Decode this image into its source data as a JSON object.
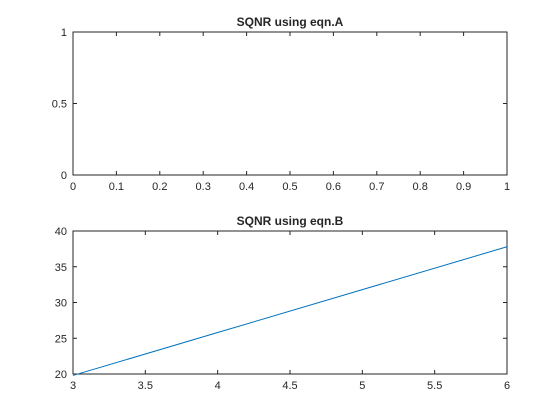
{
  "chart_data": [
    {
      "type": "line",
      "title": "SQNR using eqn.A",
      "xlim": [
        0,
        1
      ],
      "ylim": [
        0,
        1
      ],
      "xticks": [
        "0",
        "0.1",
        "0.2",
        "0.3",
        "0.4",
        "0.5",
        "0.6",
        "0.7",
        "0.8",
        "0.9",
        "1"
      ],
      "yticks": [
        "0",
        "0.5",
        "1"
      ],
      "series": [],
      "grid": false
    },
    {
      "type": "line",
      "title": "SQNR using eqn.B",
      "xlim": [
        3,
        6
      ],
      "ylim": [
        20,
        40
      ],
      "xticks": [
        "3",
        "3.5",
        "4",
        "4.5",
        "5",
        "5.5",
        "6"
      ],
      "yticks": [
        "20",
        "25",
        "30",
        "35",
        "40"
      ],
      "series": [
        {
          "x": [
            3,
            4,
            5,
            6
          ],
          "values": [
            19.8,
            25.8,
            31.8,
            37.8
          ],
          "color": "#0072bd"
        }
      ],
      "grid": false
    }
  ]
}
